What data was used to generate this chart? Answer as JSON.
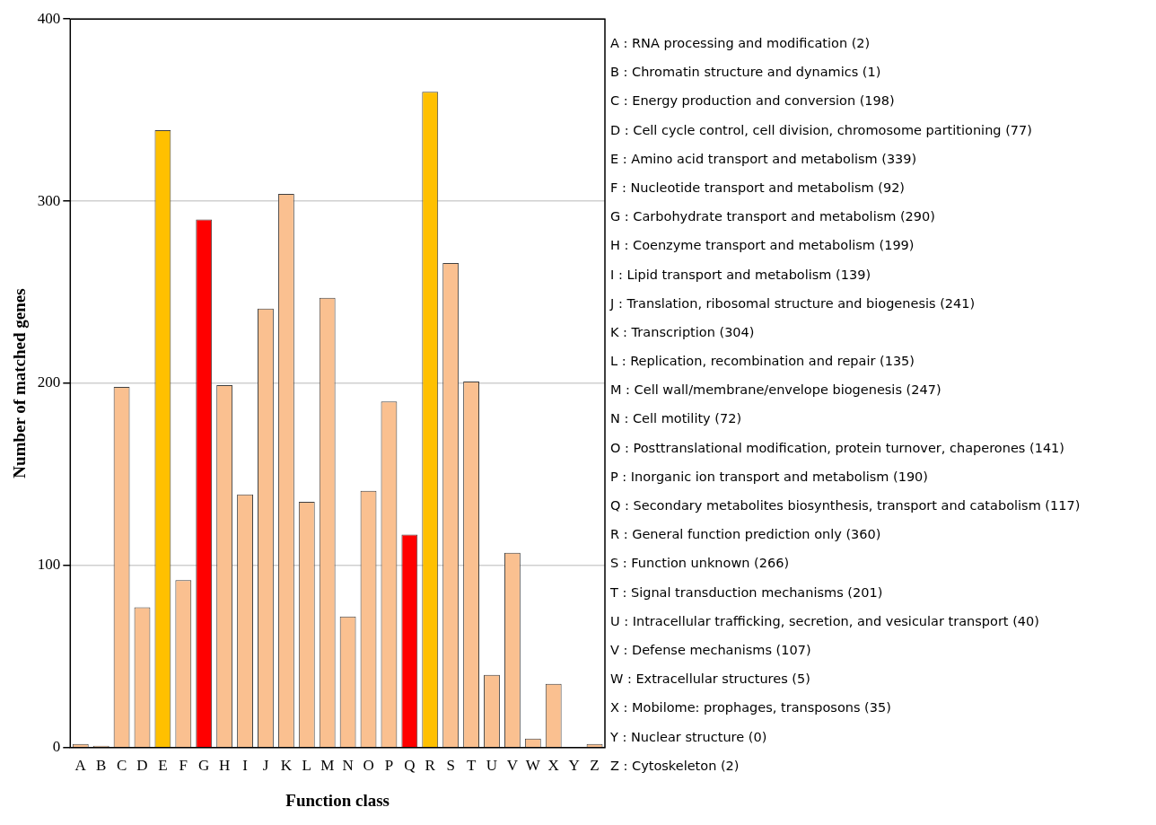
{
  "chart_data": {
    "type": "bar",
    "xlabel": "Function class",
    "ylabel": "Number of matched genes",
    "categories": [
      "A",
      "B",
      "C",
      "D",
      "E",
      "F",
      "G",
      "H",
      "I",
      "J",
      "K",
      "L",
      "M",
      "N",
      "O",
      "P",
      "Q",
      "R",
      "S",
      "T",
      "U",
      "V",
      "W",
      "X",
      "Y",
      "Z"
    ],
    "values": [
      2,
      1,
      198,
      77,
      339,
      92,
      290,
      199,
      139,
      241,
      304,
      135,
      247,
      72,
      141,
      190,
      117,
      360,
      266,
      201,
      40,
      107,
      5,
      35,
      0,
      2
    ],
    "colors": [
      "#fac090",
      "#fac090",
      "#fac090",
      "#fac090",
      "#ffc000",
      "#fac090",
      "#ff0000",
      "#fac090",
      "#fac090",
      "#fac090",
      "#fac090",
      "#fac090",
      "#fac090",
      "#fac090",
      "#fac090",
      "#fac090",
      "#ff0000",
      "#ffc000",
      "#fac090",
      "#fac090",
      "#fac090",
      "#fac090",
      "#fac090",
      "#fac090",
      "#fac090",
      "#fac090"
    ],
    "ylim": [
      0,
      400
    ],
    "yticks": [
      0,
      100,
      200,
      300,
      400
    ],
    "grid": "y",
    "annotations": [
      "A : RNA processing and modification (2)",
      "B : Chromatin structure and dynamics (1)",
      "C : Energy production and conversion (198)",
      "D : Cell cycle control, cell division, chromosome partitioning (77)",
      "E : Amino acid transport and metabolism (339)",
      "F : Nucleotide transport and metabolism (92)",
      "G : Carbohydrate transport and metabolism (290)",
      "H : Coenzyme transport and metabolism (199)",
      "I : Lipid transport and metabolism (139)",
      "J : Translation, ribosomal structure and biogenesis (241)",
      "K : Transcription (304)",
      "L : Replication, recombination and repair (135)",
      "M : Cell wall/membrane/envelope biogenesis (247)",
      "N : Cell motility (72)",
      "O : Posttranslational modification, protein turnover, chaperones (141)",
      "P : Inorganic ion transport and metabolism (190)",
      "Q : Secondary metabolites biosynthesis, transport and catabolism (117)",
      "R : General function prediction only (360)",
      "S : Function unknown (266)",
      "T : Signal transduction mechanisms (201)",
      "U : Intracellular trafficking, secretion, and vesicular transport (40)",
      "V : Defense mechanisms (107)",
      "W : Extracellular structures (5)",
      "X : Mobilome: prophages, transposons (35)",
      "Y : Nuclear structure (0)",
      "Z : Cytoskeleton (2)"
    ]
  }
}
